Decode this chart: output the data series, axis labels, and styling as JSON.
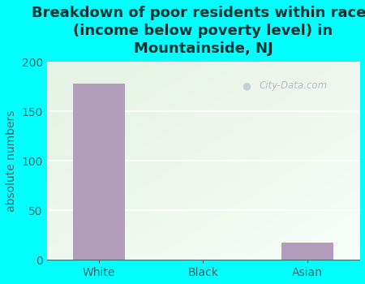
{
  "title": "Breakdown of poor residents within races\n(income below poverty level) in\nMountainside, NJ",
  "categories": [
    "White",
    "Black",
    "Asian"
  ],
  "values": [
    178,
    0,
    17
  ],
  "bar_color": "#b39dbd",
  "ylabel": "absolute numbers",
  "ylim": [
    0,
    200
  ],
  "yticks": [
    0,
    50,
    100,
    150,
    200
  ],
  "background_outer": "#00ffff",
  "title_fontsize": 13,
  "axis_label_fontsize": 10,
  "tick_fontsize": 10,
  "title_color": "#003333",
  "tick_color": "#336666",
  "watermark_text": "City-Data.com",
  "watermark_color": "#aabbc0",
  "inner_bg_left": "#d8edd8",
  "inner_bg_right": "#f0f4f0"
}
